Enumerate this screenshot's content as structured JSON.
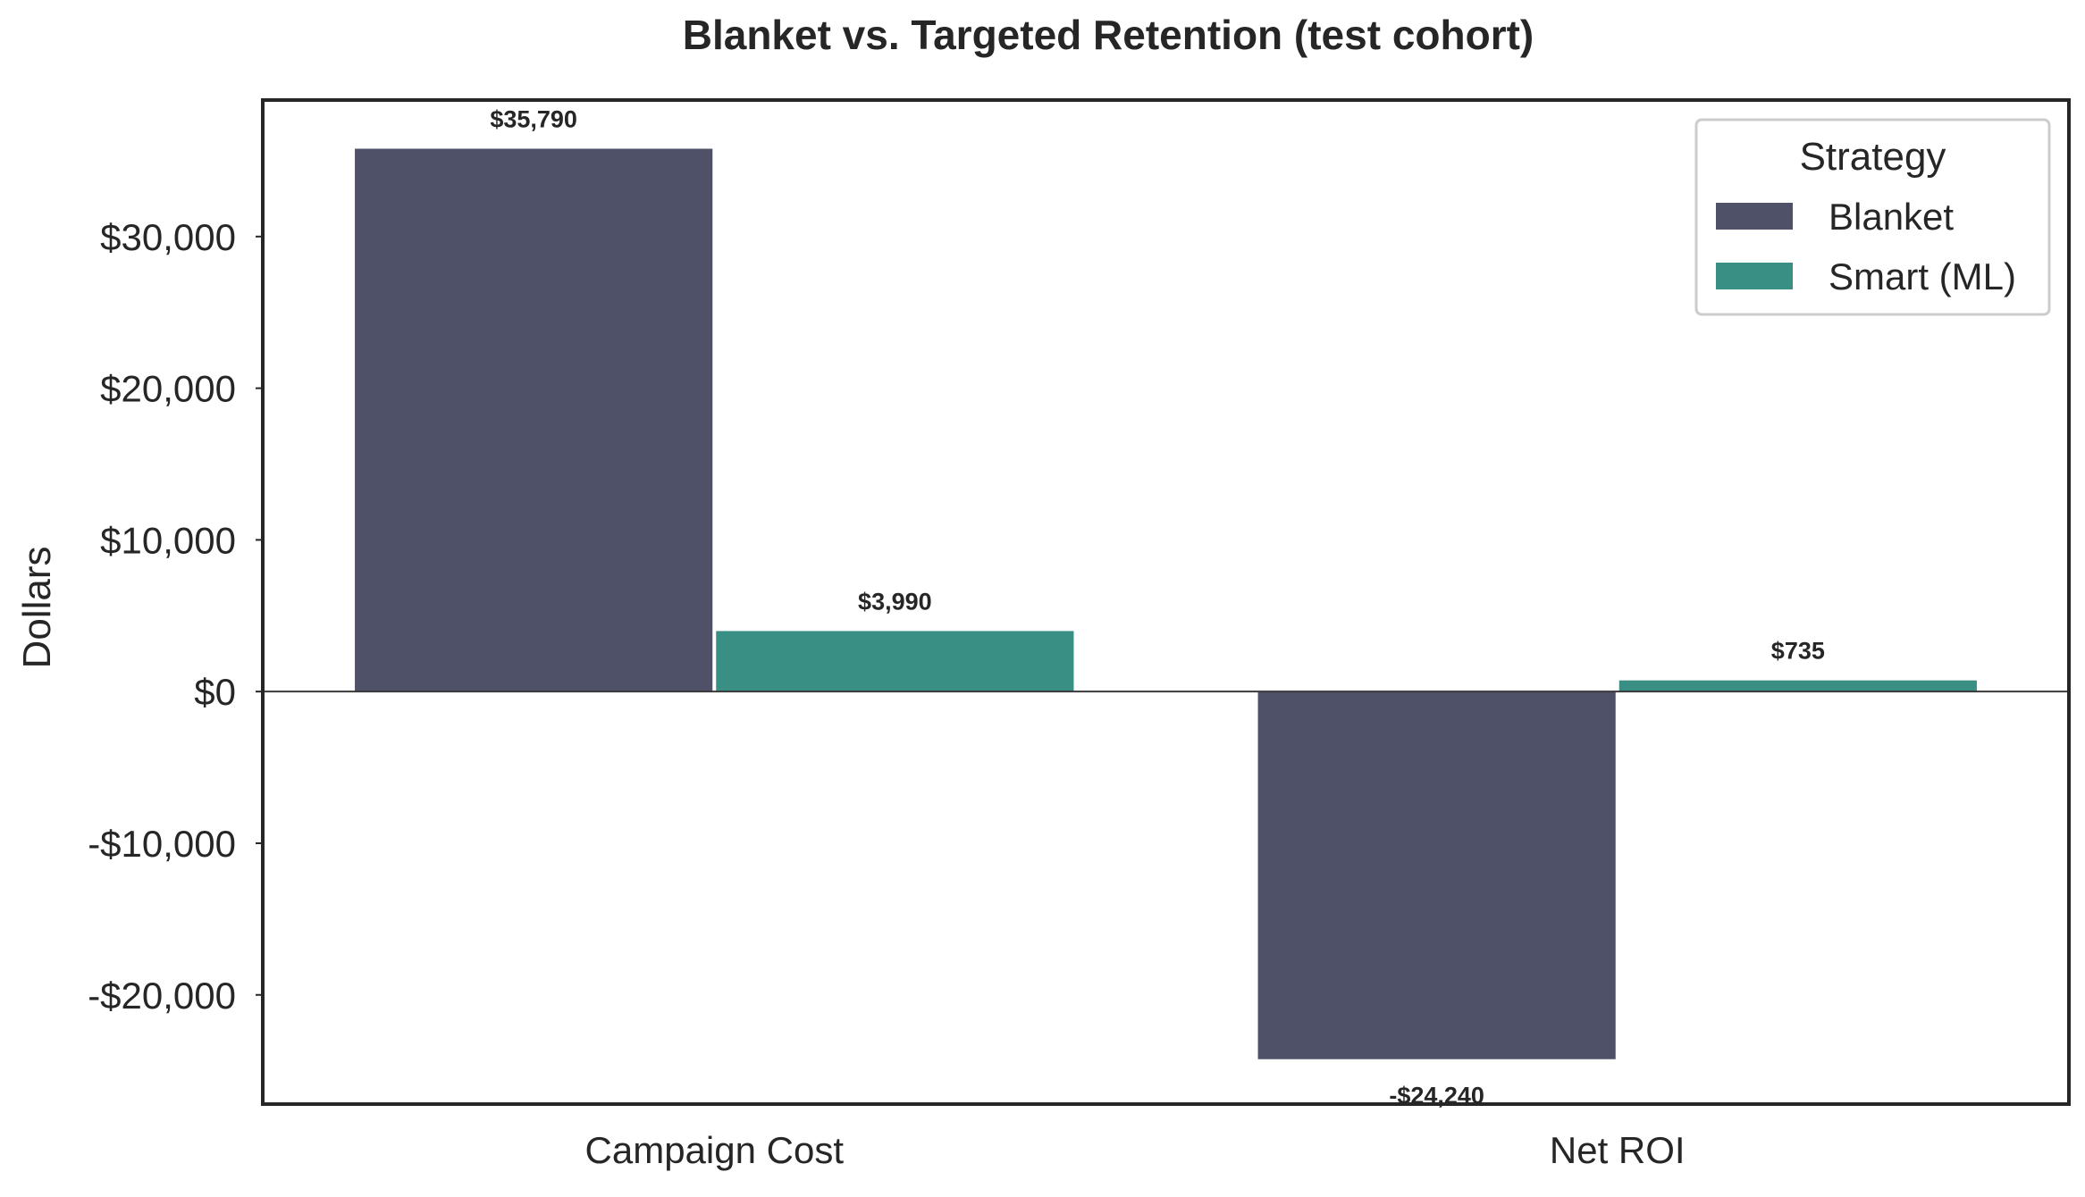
{
  "chart_data": {
    "type": "bar",
    "title": "Blanket vs. Targeted Retention (test cohort)",
    "xlabel": "",
    "ylabel": "Dollars",
    "categories": [
      "Campaign Cost",
      "Net ROI"
    ],
    "series": [
      {
        "name": "Blanket",
        "values": [
          35790,
          -24240
        ],
        "labels": [
          "$35,790",
          "-$24,240"
        ],
        "color": "#4e5167"
      },
      {
        "name": "Smart (ML)",
        "values": [
          3990,
          735
        ],
        "labels": [
          "$3,990",
          "$735"
        ],
        "color": "#3a8f84"
      }
    ],
    "ylim": [
      -27200,
      39000
    ],
    "yticks": [
      -20000,
      -10000,
      0,
      10000,
      20000,
      30000
    ],
    "ytick_labels": [
      "-$20,000",
      "-$10,000",
      "$0",
      "$10,000",
      "$20,000",
      "$30,000"
    ],
    "zero_line": true,
    "grid": false,
    "legend": {
      "title": "Strategy",
      "placement": "top-right"
    }
  }
}
